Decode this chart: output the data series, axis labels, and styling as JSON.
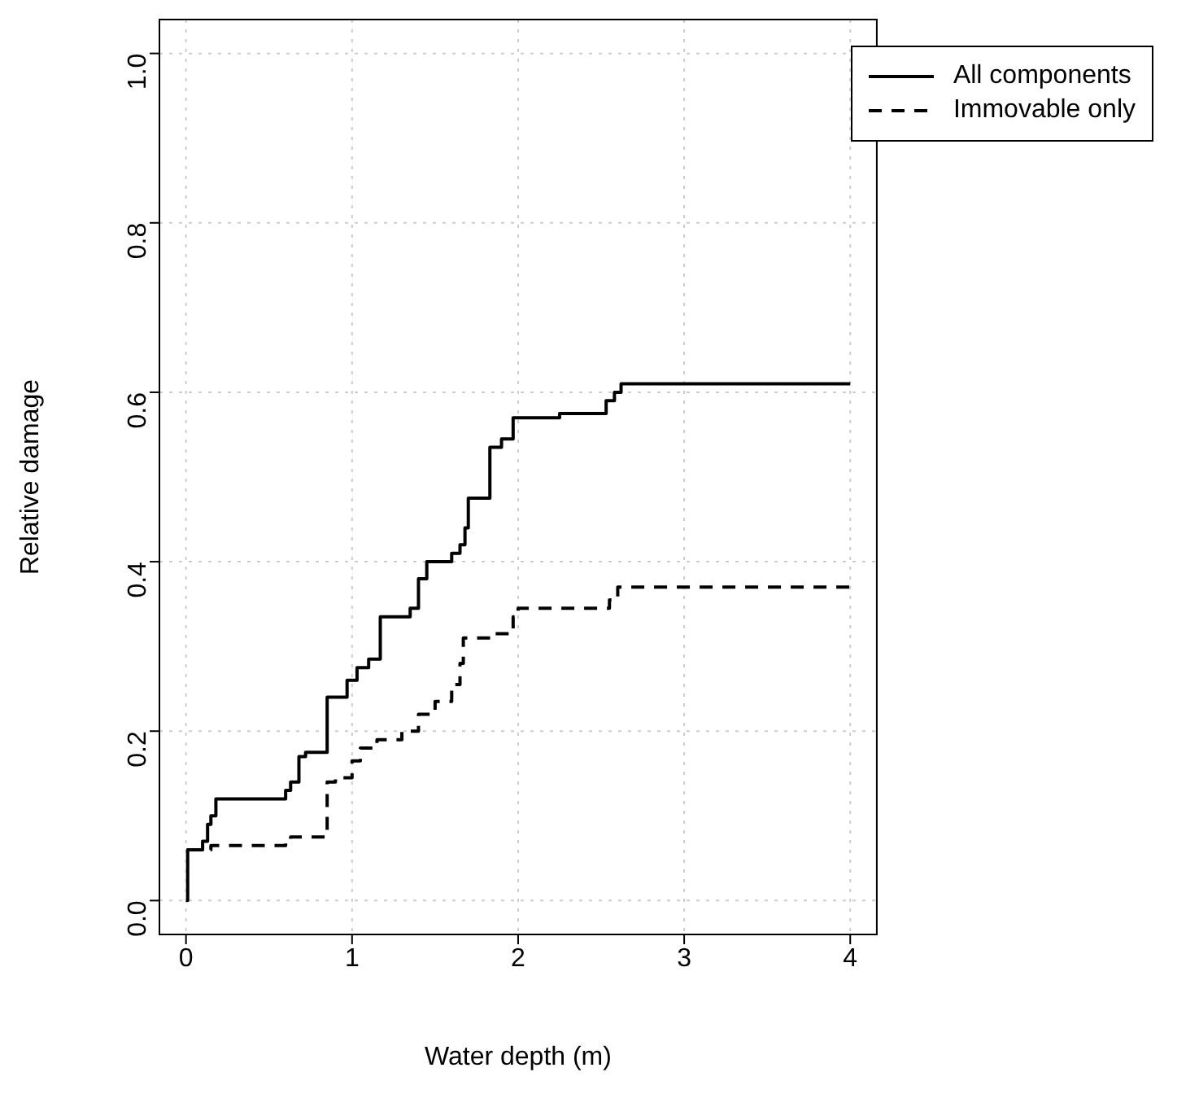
{
  "chart_data": {
    "type": "step",
    "xlabel": "Water depth (m)",
    "ylabel": "Relative damage",
    "xlim": [
      -0.16,
      4.16
    ],
    "xticks": [
      0,
      1,
      2,
      3,
      4
    ],
    "ylim": [
      -0.04,
      1.04
    ],
    "yticks": [
      {
        "value": 0,
        "label": "0.0"
      },
      {
        "value": 0.2,
        "label": "0.2"
      },
      {
        "value": 0.4,
        "label": "0.4"
      },
      {
        "value": 0.6,
        "label": "0.6"
      },
      {
        "value": 0.8,
        "label": "0.8"
      },
      {
        "value": 1,
        "label": "1.0"
      }
    ],
    "grid": true,
    "legend": "top right",
    "marker": "none",
    "series": [
      {
        "name": "All components",
        "color": "#000000",
        "line_style": "solid",
        "x": [
          0,
          0.01,
          0.1,
          0.13,
          0.15,
          0.18,
          0.6,
          0.63,
          0.68,
          0.72,
          0.85,
          0.97,
          1.03,
          1.1,
          1.17,
          1.35,
          1.4,
          1.45,
          1.6,
          1.65,
          1.68,
          1.7,
          1.83,
          1.9,
          1.97,
          2.25,
          2.53,
          2.58,
          2.62,
          4
        ],
        "values": [
          0,
          0.06,
          0.07,
          0.09,
          0.1,
          0.12,
          0.13,
          0.14,
          0.17,
          0.175,
          0.24,
          0.26,
          0.275,
          0.285,
          0.335,
          0.345,
          0.38,
          0.4,
          0.41,
          0.42,
          0.44,
          0.475,
          0.535,
          0.545,
          0.57,
          0.575,
          0.59,
          0.6,
          0.61,
          0.61
        ]
      },
      {
        "name": "Immovable only",
        "color": "#000000",
        "line_style": "dashed",
        "x": [
          0.01,
          0.15,
          0.6,
          0.63,
          0.85,
          0.9,
          1,
          1.05,
          1.15,
          1.3,
          1.4,
          1.5,
          1.6,
          1.65,
          1.67,
          1.85,
          1.97,
          2,
          2.55,
          2.6,
          4
        ],
        "values": [
          0.06,
          0.065,
          0.07,
          0.075,
          0.14,
          0.145,
          0.165,
          0.18,
          0.19,
          0.2,
          0.22,
          0.235,
          0.255,
          0.28,
          0.31,
          0.315,
          0.335,
          0.345,
          0.355,
          0.37,
          0.37
        ]
      }
    ]
  }
}
